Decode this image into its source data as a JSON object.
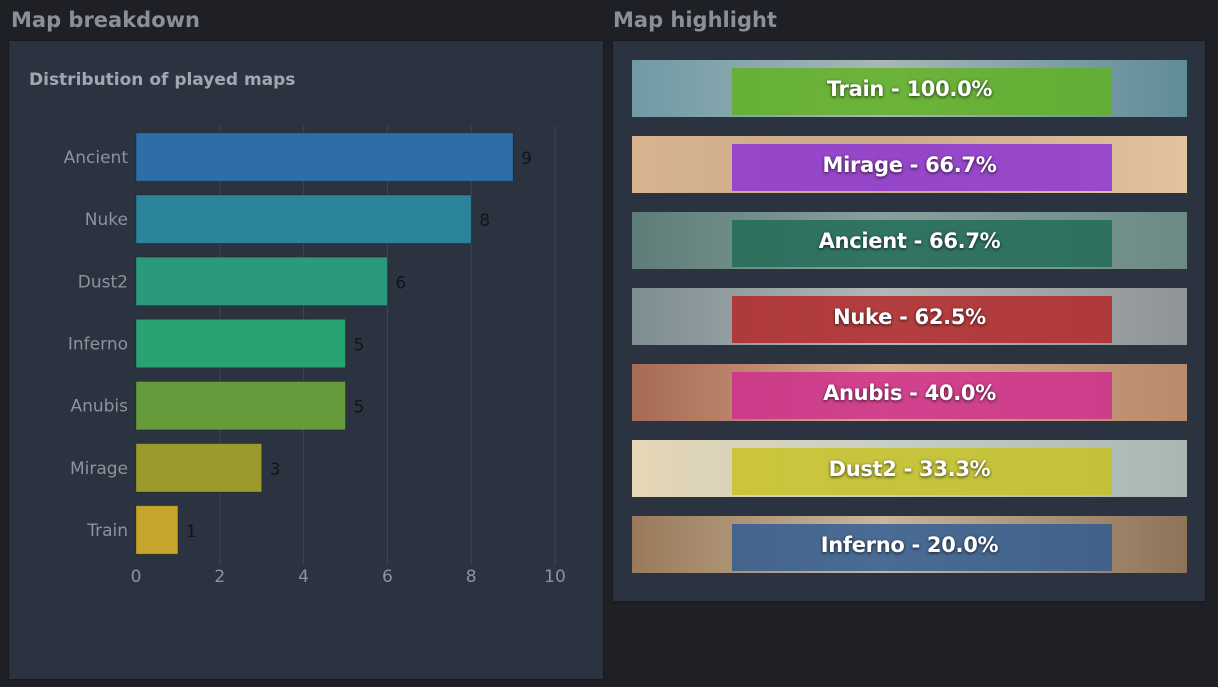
{
  "sections": {
    "breakdown_title": "Map breakdown",
    "highlight_title": "Map highlight"
  },
  "chart_data": {
    "type": "bar",
    "orientation": "horizontal",
    "title": "Distribution of played maps",
    "categories": [
      "Ancient",
      "Nuke",
      "Dust2",
      "Inferno",
      "Anubis",
      "Mirage",
      "Train"
    ],
    "values": [
      9,
      8,
      6,
      5,
      5,
      3,
      1
    ],
    "bar_colors": [
      "#2e6ea8",
      "#2b8499",
      "#299a7e",
      "#29a372",
      "#669b3b",
      "#9b9a2c",
      "#c6a52d"
    ],
    "xlim": [
      0,
      10
    ],
    "xticks": [
      0,
      2,
      4,
      6,
      8,
      10
    ],
    "grid": true,
    "legend": "none",
    "data_labels": true
  },
  "highlights": [
    {
      "label": "Train - 100.0%",
      "map": "Train",
      "pct": 100.0,
      "color": "#5fb21f",
      "bg": [
        "#6f9aa6",
        "#a8b7b6",
        "#5f8c99"
      ]
    },
    {
      "label": "Mirage - 66.7%",
      "map": "Mirage",
      "pct": 66.7,
      "color": "#8a2fd6",
      "bg": [
        "#d7b48e",
        "#c9a98b",
        "#e2c39d"
      ]
    },
    {
      "label": "Ancient - 66.7%",
      "map": "Ancient",
      "pct": 66.7,
      "color": "#1f6a55",
      "bg": [
        "#5e7d78",
        "#88a09c",
        "#6c8b84"
      ]
    },
    {
      "label": "Nuke - 62.5%",
      "map": "Nuke",
      "pct": 62.5,
      "color": "#b52325",
      "bg": [
        "#7d8d92",
        "#b3b7b6",
        "#8f9597"
      ]
    },
    {
      "label": "Anubis - 40.0%",
      "map": "Anubis",
      "pct": 40.0,
      "color": "#cf2c8f",
      "bg": [
        "#a66b55",
        "#d4a988",
        "#b98a6c"
      ]
    },
    {
      "label": "Dust2 - 33.3%",
      "map": "Dust2",
      "pct": 33.3,
      "color": "#c7c21f",
      "bg": [
        "#e6d6b6",
        "#c8cfc4",
        "#a9b7b2"
      ]
    },
    {
      "label": "Inferno - 20.0%",
      "map": "Inferno",
      "pct": 20.0,
      "color": "#2d5a93",
      "bg": [
        "#9a7a5b",
        "#c9b69b",
        "#8e7358"
      ]
    }
  ]
}
